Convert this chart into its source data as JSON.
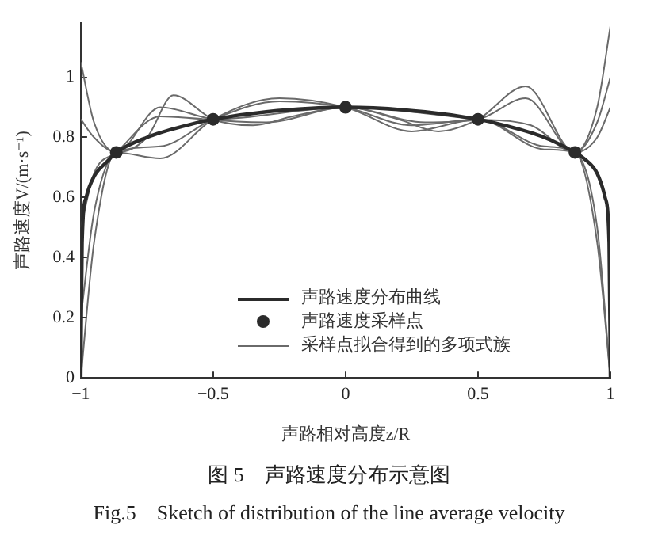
{
  "chart_data": {
    "type": "line",
    "xlabel": "声路相对高度z/R",
    "ylabel": "声路速度V/(m·s⁻¹)",
    "xlim": [
      -1,
      1
    ],
    "ylim": [
      0,
      1.18
    ],
    "xticks": [
      {
        "value": -1,
        "label": "−1"
      },
      {
        "value": -0.5,
        "label": "−0.5"
      },
      0,
      0.5,
      1
    ],
    "yticks": [
      0,
      0.2,
      0.4,
      0.6,
      0.8,
      1
    ],
    "grid": false,
    "legend": "bottom",
    "line_style": "solid",
    "annotations": [
      "图 5　声路速度分布示意图",
      "Fig.5　Sketch of distribution of the line average velocity"
    ],
    "series": [
      {
        "name": "声路速度分布曲线",
        "type": "line",
        "color": "#2b2b2b",
        "marker": "none",
        "x": [
          -1,
          -0.995,
          -0.98,
          -0.95,
          -0.9,
          -0.866,
          -0.75,
          -0.6,
          -0.5,
          -0.3,
          0,
          0.3,
          0.5,
          0.6,
          0.75,
          0.866,
          0.9,
          0.95,
          0.98,
          0.995,
          1
        ],
        "values": [
          0,
          0.45,
          0.6,
          0.67,
          0.72,
          0.75,
          0.8,
          0.84,
          0.86,
          0.885,
          0.9,
          0.885,
          0.86,
          0.84,
          0.8,
          0.75,
          0.73,
          0.68,
          0.6,
          0.45,
          0
        ]
      },
      {
        "name": "声路速度采样点",
        "type": "scatter",
        "color": "#2b2b2b",
        "marker": "circle",
        "x": [
          -0.866,
          -0.5,
          0,
          0.5,
          0.866
        ],
        "values": [
          0.75,
          0.86,
          0.9,
          0.86,
          0.75
        ]
      },
      {
        "name": "采样点拟合得到的多项式族",
        "type": "line",
        "color": "#6a6a6a",
        "marker": "none",
        "x": [
          -1,
          -0.95,
          -0.866,
          -0.75,
          -0.65,
          -0.5,
          -0.35,
          -0.2,
          0,
          0.2,
          0.35,
          0.5,
          0.68,
          0.866,
          0.95,
          1
        ],
        "values": [
          1.05,
          0.85,
          0.75,
          0.8,
          0.94,
          0.86,
          0.84,
          0.87,
          0.9,
          0.86,
          0.82,
          0.86,
          0.97,
          0.75,
          0.9,
          1.17
        ]
      },
      {
        "type": "line",
        "color": "#6a6a6a",
        "marker": "none",
        "x": [
          -1,
          -0.95,
          -0.866,
          -0.7,
          -0.5,
          -0.3,
          0,
          0.3,
          0.5,
          0.68,
          0.866,
          0.95,
          1
        ],
        "values": [
          0.86,
          0.8,
          0.75,
          0.9,
          0.86,
          0.85,
          0.9,
          0.85,
          0.86,
          0.93,
          0.75,
          0.85,
          1.0
        ]
      },
      {
        "type": "line",
        "color": "#6a6a6a",
        "marker": "none",
        "x": [
          -1,
          -0.95,
          -0.866,
          -0.7,
          -0.5,
          0,
          0.5,
          0.7,
          0.866,
          0.95,
          1
        ],
        "values": [
          0.5,
          0.68,
          0.75,
          0.87,
          0.86,
          0.9,
          0.86,
          0.84,
          0.75,
          0.8,
          0.9
        ]
      },
      {
        "type": "line",
        "color": "#6a6a6a",
        "marker": "none",
        "x": [
          -1,
          -0.95,
          -0.866,
          -0.7,
          -0.5,
          -0.25,
          0,
          0.25,
          0.5,
          0.75,
          0.866,
          0.95,
          1
        ],
        "values": [
          0.2,
          0.55,
          0.75,
          0.77,
          0.86,
          0.92,
          0.9,
          0.84,
          0.86,
          0.77,
          0.75,
          0.5,
          0
        ]
      },
      {
        "type": "line",
        "color": "#6a6a6a",
        "marker": "none",
        "x": [
          -1,
          -0.95,
          -0.866,
          -0.7,
          -0.5,
          -0.25,
          0,
          0.25,
          0.5,
          0.75,
          0.866,
          0.95,
          1
        ],
        "values": [
          0,
          0.45,
          0.75,
          0.73,
          0.86,
          0.93,
          0.9,
          0.82,
          0.86,
          0.76,
          0.75,
          0.45,
          0
        ]
      }
    ]
  }
}
